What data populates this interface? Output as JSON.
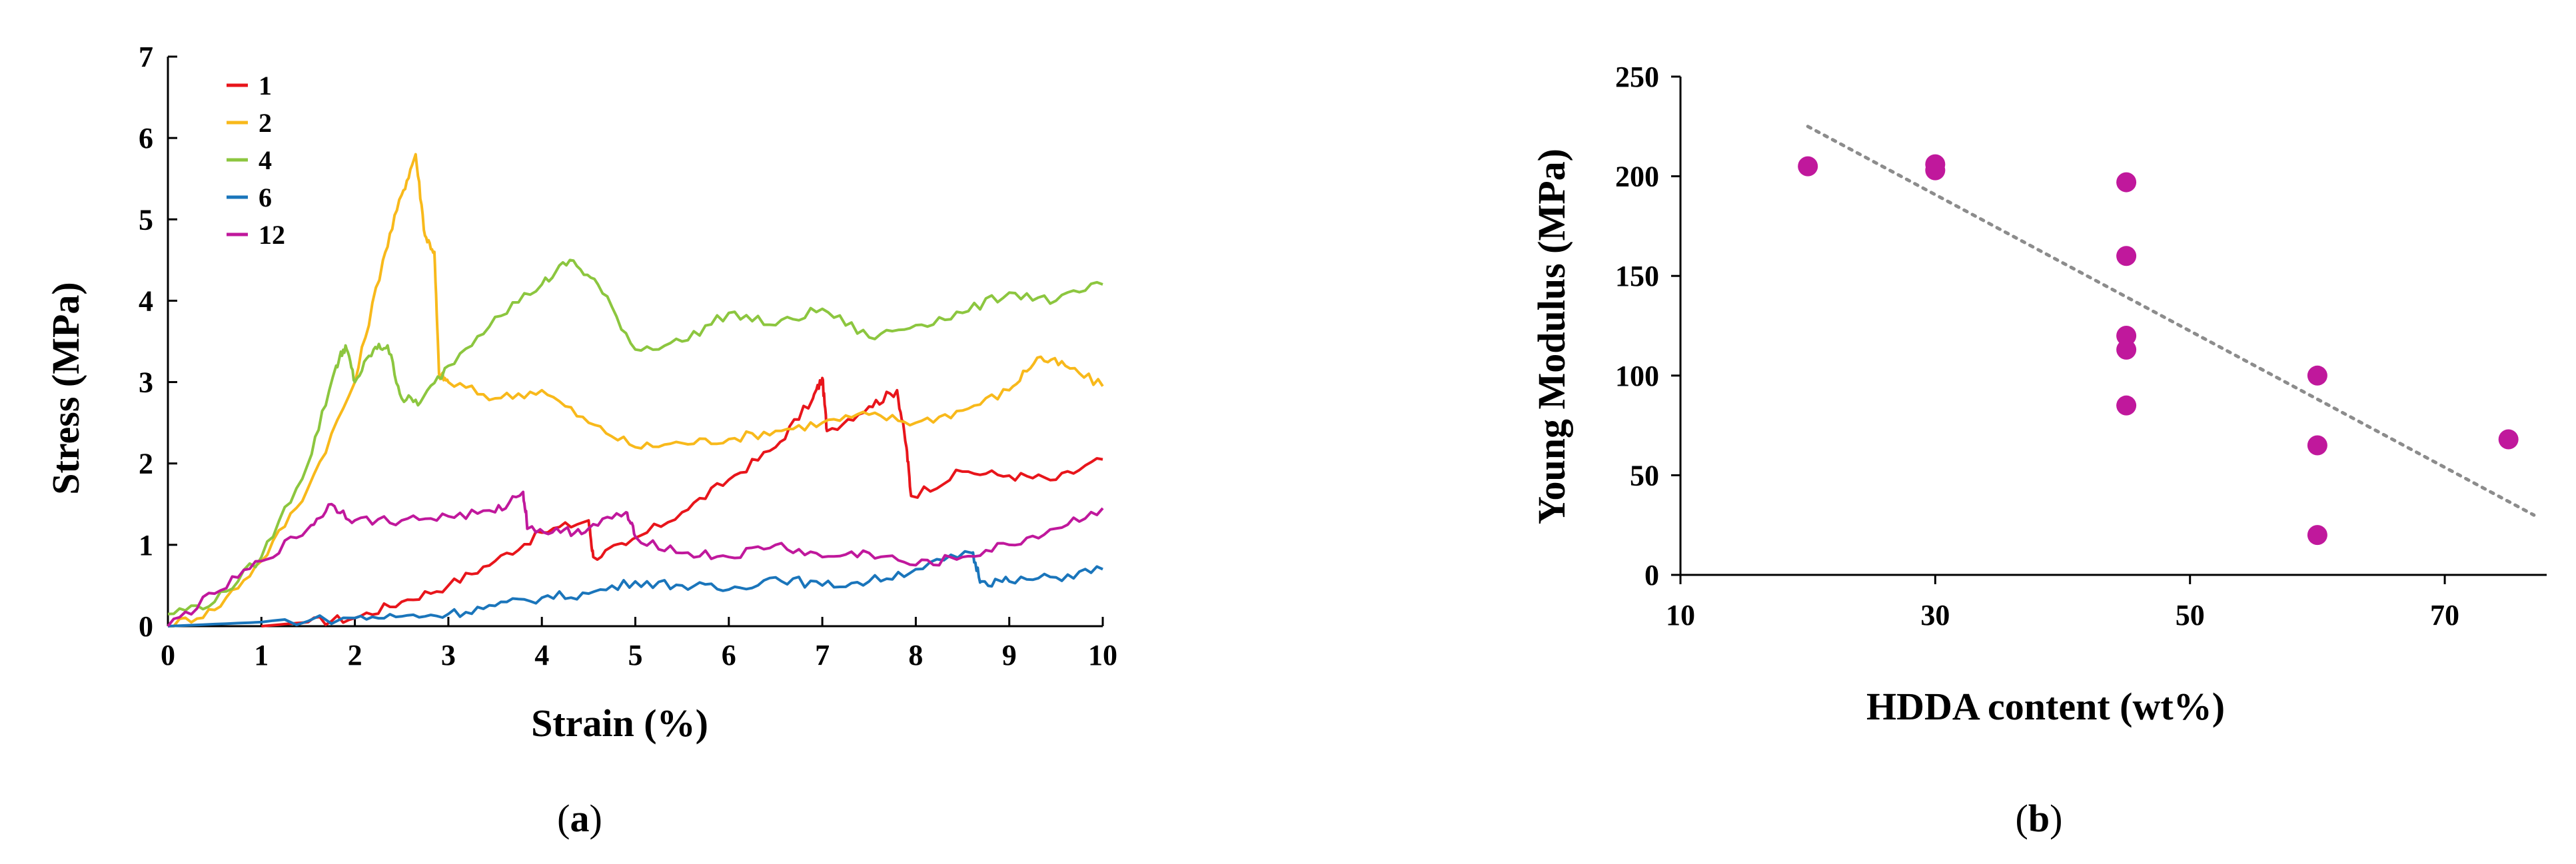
{
  "chart_data": [
    {
      "type": "line",
      "panel_label": "a",
      "xlabel": "Strain (%)",
      "ylabel": "Stress (MPa)",
      "xlim": [
        0,
        10
      ],
      "ylim": [
        0,
        7
      ],
      "xticks": [
        0,
        1,
        2,
        3,
        4,
        5,
        6,
        7,
        8,
        9,
        10
      ],
      "yticks": [
        0,
        1,
        2,
        3,
        4,
        5,
        6,
        7
      ],
      "grid": false,
      "legend_position": "top-left",
      "series": [
        {
          "name": "1",
          "color": "#e8151b",
          "points": [
            [
              1.0,
              0.0
            ],
            [
              1.5,
              0.05
            ],
            [
              2.0,
              0.1
            ],
            [
              2.5,
              0.3
            ],
            [
              3.0,
              0.5
            ],
            [
              3.5,
              0.8
            ],
            [
              4.0,
              1.15
            ],
            [
              4.5,
              1.3
            ],
            [
              4.55,
              0.85
            ],
            [
              4.9,
              1.0
            ],
            [
              5.5,
              1.4
            ],
            [
              6.0,
              1.8
            ],
            [
              6.5,
              2.2
            ],
            [
              6.9,
              2.8
            ],
            [
              7.0,
              3.05
            ],
            [
              7.05,
              2.4
            ],
            [
              7.5,
              2.7
            ],
            [
              7.8,
              2.9
            ],
            [
              7.9,
              2.2
            ],
            [
              7.95,
              1.6
            ],
            [
              8.5,
              1.9
            ],
            [
              9.0,
              1.85
            ],
            [
              9.5,
              1.8
            ],
            [
              10.0,
              2.05
            ]
          ]
        },
        {
          "name": "2",
          "color": "#f8b91b",
          "points": [
            [
              0.0,
              0.0
            ],
            [
              0.5,
              0.2
            ],
            [
              1.0,
              0.8
            ],
            [
              1.5,
              1.7
            ],
            [
              2.0,
              3.0
            ],
            [
              2.3,
              4.5
            ],
            [
              2.5,
              5.3
            ],
            [
              2.65,
              5.8
            ],
            [
              2.75,
              4.8
            ],
            [
              2.85,
              4.6
            ],
            [
              2.9,
              3.1
            ],
            [
              3.0,
              3.0
            ],
            [
              3.5,
              2.8
            ],
            [
              4.0,
              2.9
            ],
            [
              4.5,
              2.5
            ],
            [
              5.0,
              2.2
            ],
            [
              5.5,
              2.25
            ],
            [
              6.0,
              2.3
            ],
            [
              6.5,
              2.4
            ],
            [
              7.0,
              2.5
            ],
            [
              7.5,
              2.6
            ],
            [
              8.0,
              2.5
            ],
            [
              8.5,
              2.65
            ],
            [
              9.0,
              2.9
            ],
            [
              9.3,
              3.3
            ],
            [
              9.6,
              3.2
            ],
            [
              10.0,
              2.95
            ]
          ]
        },
        {
          "name": "4",
          "color": "#8cc63f",
          "points": [
            [
              0.0,
              0.15
            ],
            [
              0.5,
              0.3
            ],
            [
              1.0,
              0.85
            ],
            [
              1.5,
              2.0
            ],
            [
              1.8,
              3.2
            ],
            [
              1.9,
              3.45
            ],
            [
              2.0,
              3.0
            ],
            [
              2.2,
              3.4
            ],
            [
              2.35,
              3.45
            ],
            [
              2.5,
              2.8
            ],
            [
              2.7,
              2.75
            ],
            [
              3.0,
              3.2
            ],
            [
              3.5,
              3.8
            ],
            [
              4.0,
              4.2
            ],
            [
              4.3,
              4.5
            ],
            [
              4.6,
              4.2
            ],
            [
              5.0,
              3.4
            ],
            [
              5.5,
              3.5
            ],
            [
              6.0,
              3.85
            ],
            [
              6.5,
              3.7
            ],
            [
              7.0,
              3.9
            ],
            [
              7.5,
              3.55
            ],
            [
              8.0,
              3.7
            ],
            [
              8.5,
              3.85
            ],
            [
              9.0,
              4.1
            ],
            [
              9.5,
              4.0
            ],
            [
              10.0,
              4.2
            ]
          ]
        },
        {
          "name": "6",
          "color": "#1a75bb",
          "points": [
            [
              0.0,
              0.0
            ],
            [
              1.0,
              0.05
            ],
            [
              2.0,
              0.1
            ],
            [
              2.5,
              0.12
            ],
            [
              3.0,
              0.15
            ],
            [
              3.5,
              0.25
            ],
            [
              4.0,
              0.35
            ],
            [
              4.5,
              0.4
            ],
            [
              5.0,
              0.55
            ],
            [
              5.5,
              0.5
            ],
            [
              6.0,
              0.45
            ],
            [
              6.5,
              0.6
            ],
            [
              7.0,
              0.5
            ],
            [
              7.5,
              0.55
            ],
            [
              8.0,
              0.7
            ],
            [
              8.6,
              0.9
            ],
            [
              8.7,
              0.55
            ],
            [
              9.0,
              0.55
            ],
            [
              9.5,
              0.6
            ],
            [
              10.0,
              0.7
            ]
          ]
        },
        {
          "name": "12",
          "color": "#c0189c",
          "points": [
            [
              0.0,
              0.0
            ],
            [
              0.5,
              0.4
            ],
            [
              1.0,
              0.8
            ],
            [
              1.5,
              1.2
            ],
            [
              1.75,
              1.5
            ],
            [
              2.0,
              1.3
            ],
            [
              2.5,
              1.3
            ],
            [
              3.0,
              1.35
            ],
            [
              3.5,
              1.4
            ],
            [
              3.8,
              1.65
            ],
            [
              3.85,
              1.2
            ],
            [
              4.2,
              1.15
            ],
            [
              4.5,
              1.2
            ],
            [
              4.9,
              1.4
            ],
            [
              5.0,
              1.1
            ],
            [
              5.5,
              0.9
            ],
            [
              6.0,
              0.85
            ],
            [
              6.5,
              1.0
            ],
            [
              7.0,
              0.85
            ],
            [
              7.5,
              0.9
            ],
            [
              8.0,
              0.75
            ],
            [
              8.5,
              0.85
            ],
            [
              9.0,
              1.0
            ],
            [
              9.5,
              1.2
            ],
            [
              10.0,
              1.45
            ]
          ]
        }
      ]
    },
    {
      "type": "scatter",
      "panel_label": "b",
      "xlabel": "HDDA content (wt%)",
      "ylabel": "Young Modulus (MPa)",
      "xlim": [
        10,
        78
      ],
      "ylim": [
        0,
        250
      ],
      "xticks": [
        10,
        30,
        50,
        70
      ],
      "yticks": [
        0,
        50,
        100,
        150,
        200,
        250
      ],
      "grid": false,
      "marker_color": "#c0189c",
      "trendline_color": "#8c8c8c",
      "trendline": [
        [
          20,
          225
        ],
        [
          77,
          30
        ]
      ],
      "points": [
        [
          20,
          205
        ],
        [
          30,
          206
        ],
        [
          30,
          203
        ],
        [
          45,
          197
        ],
        [
          45,
          160
        ],
        [
          45,
          120
        ],
        [
          45,
          113
        ],
        [
          45,
          85
        ],
        [
          60,
          100
        ],
        [
          60,
          65
        ],
        [
          60,
          20
        ],
        [
          75,
          68
        ]
      ]
    }
  ]
}
